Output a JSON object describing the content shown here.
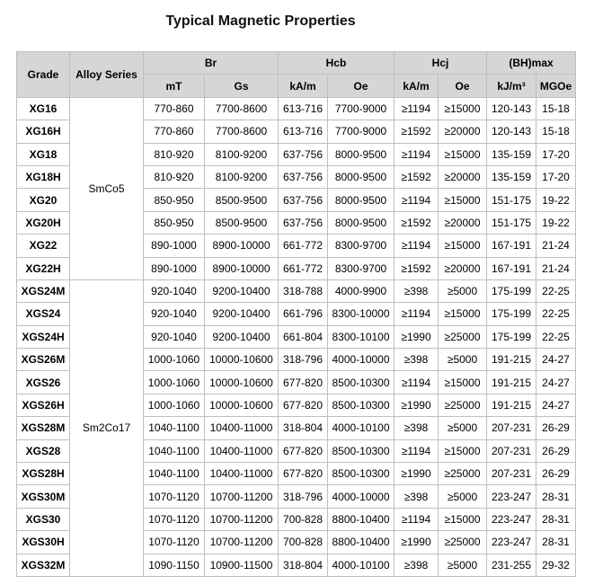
{
  "title": "Typical Magnetic Properties",
  "table": {
    "header": [
      "Grade",
      "Alloy Series",
      "Br",
      "Hcb",
      "Hcj",
      "(BH)max"
    ],
    "subheader": [
      "mT",
      "Gs",
      "kA/m",
      "Oe",
      "kA/m",
      "Oe",
      "kJ/m³",
      "MGOe"
    ],
    "groups": [
      {
        "series": "SmCo5",
        "rows": [
          [
            "XG16",
            "770-860",
            "7700-8600",
            "613-716",
            "7700-9000",
            "≥1194",
            "≥15000",
            "120-143",
            "15-18"
          ],
          [
            "XG16H",
            "770-860",
            "7700-8600",
            "613-716",
            "7700-9000",
            "≥1592",
            "≥20000",
            "120-143",
            "15-18"
          ],
          [
            "XG18",
            "810-920",
            "8100-9200",
            "637-756",
            "8000-9500",
            "≥1194",
            "≥15000",
            "135-159",
            "17-20"
          ],
          [
            "XG18H",
            "810-920",
            "8100-9200",
            "637-756",
            "8000-9500",
            "≥1592",
            "≥20000",
            "135-159",
            "17-20"
          ],
          [
            "XG20",
            "850-950",
            "8500-9500",
            "637-756",
            "8000-9500",
            "≥1194",
            "≥15000",
            "151-175",
            "19-22"
          ],
          [
            "XG20H",
            "850-950",
            "8500-9500",
            "637-756",
            "8000-9500",
            "≥1592",
            "≥20000",
            "151-175",
            "19-22"
          ],
          [
            "XG22",
            "890-1000",
            "8900-10000",
            "661-772",
            "8300-9700",
            "≥1194",
            "≥15000",
            "167-191",
            "21-24"
          ],
          [
            "XG22H",
            "890-1000",
            "8900-10000",
            "661-772",
            "8300-9700",
            "≥1592",
            "≥20000",
            "167-191",
            "21-24"
          ]
        ]
      },
      {
        "series": "Sm2Co17",
        "rows": [
          [
            "XGS24M",
            "920-1040",
            "9200-10400",
            "318-788",
            "4000-9900",
            "≥398",
            "≥5000",
            "175-199",
            "22-25"
          ],
          [
            "XGS24",
            "920-1040",
            "9200-10400",
            "661-796",
            "8300-10000",
            "≥1194",
            "≥15000",
            "175-199",
            "22-25"
          ],
          [
            "XGS24H",
            "920-1040",
            "9200-10400",
            "661-804",
            "8300-10100",
            "≥1990",
            "≥25000",
            "175-199",
            "22-25"
          ],
          [
            "XGS26M",
            "1000-1060",
            "10000-10600",
            "318-796",
            "4000-10000",
            "≥398",
            "≥5000",
            "191-215",
            "24-27"
          ],
          [
            "XGS26",
            "1000-1060",
            "10000-10600",
            "677-820",
            "8500-10300",
            "≥1194",
            "≥15000",
            "191-215",
            "24-27"
          ],
          [
            "XGS26H",
            "1000-1060",
            "10000-10600",
            "677-820",
            "8500-10300",
            "≥1990",
            "≥25000",
            "191-215",
            "24-27"
          ],
          [
            "XGS28M",
            "1040-1100",
            "10400-11000",
            "318-804",
            "4000-10100",
            "≥398",
            "≥5000",
            "207-231",
            "26-29"
          ],
          [
            "XGS28",
            "1040-1100",
            "10400-11000",
            "677-820",
            "8500-10300",
            "≥1194",
            "≥15000",
            "207-231",
            "26-29"
          ],
          [
            "XGS28H",
            "1040-1100",
            "10400-11000",
            "677-820",
            "8500-10300",
            "≥1990",
            "≥25000",
            "207-231",
            "26-29"
          ],
          [
            "XGS30M",
            "1070-1120",
            "10700-11200",
            "318-796",
            "4000-10000",
            "≥398",
            "≥5000",
            "223-247",
            "28-31"
          ],
          [
            "XGS30",
            "1070-1120",
            "10700-11200",
            "700-828",
            "8800-10400",
            "≥1194",
            "≥15000",
            "223-247",
            "28-31"
          ],
          [
            "XGS30H",
            "1070-1120",
            "10700-11200",
            "700-828",
            "8800-10400",
            "≥1990",
            "≥25000",
            "223-247",
            "28-31"
          ],
          [
            "XGS32M",
            "1090-1150",
            "10900-11500",
            "318-804",
            "4000-10100",
            "≥398",
            "≥5000",
            "231-255",
            "29-32"
          ]
        ]
      }
    ]
  }
}
